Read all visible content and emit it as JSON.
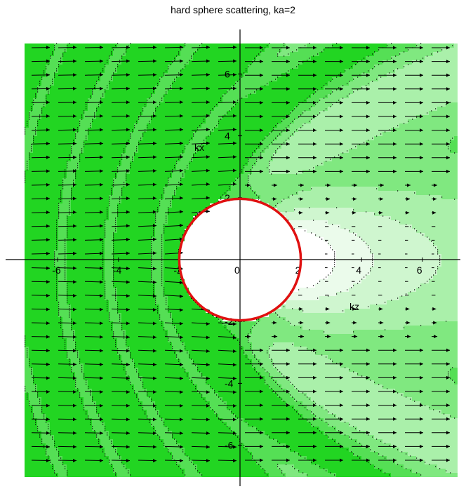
{
  "chart_data": {
    "type": "contour",
    "title": "hard sphere scattering, ka=2",
    "xlabel": "kz",
    "ylabel": "kx",
    "xlim": [
      -7.2,
      7.2
    ],
    "ylim": [
      -7.2,
      7.2
    ],
    "x_ticks": [
      "-6",
      "-4",
      "-2",
      "0",
      "2",
      "4",
      "6"
    ],
    "y_ticks": [
      "6",
      "4",
      "2",
      "-2",
      "-4",
      "-6"
    ],
    "sphere": {
      "radius": 2,
      "center": [
        0,
        0
      ]
    },
    "contour_levels": 7,
    "vector_field": "arrows point in +kz direction; magnitude small in shadow region kz>0, |kx|<2",
    "colors": {
      "levels": [
        "#ffffff",
        "#ebfbeb",
        "#cff6cf",
        "#aaf0aa",
        "#80e880",
        "#55df55",
        "#22d522"
      ],
      "sphere": "#e01010",
      "arrows": "#000000",
      "contour_lines": "#000000"
    }
  }
}
